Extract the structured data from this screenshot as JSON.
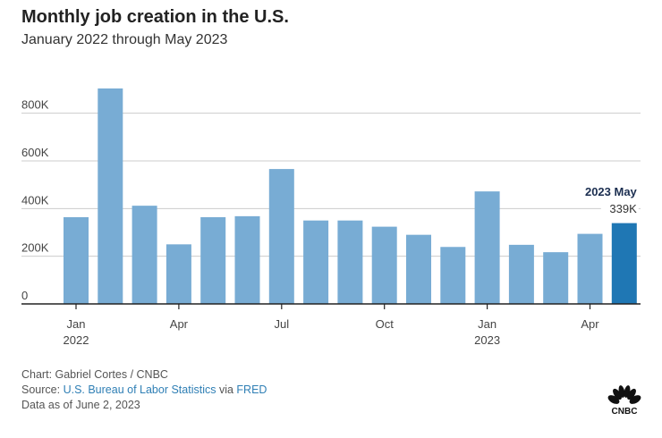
{
  "header": {
    "title": "Monthly job creation in the U.S.",
    "subtitle": "January 2022 through May 2023"
  },
  "chart_data": {
    "type": "bar",
    "title": "Monthly job creation in the U.S.",
    "subtitle": "January 2022 through May 2023",
    "xlabel": "",
    "ylabel": "",
    "categories": [
      "2022-01",
      "2022-02",
      "2022-03",
      "2022-04",
      "2022-05",
      "2022-06",
      "2022-07",
      "2022-08",
      "2022-09",
      "2022-10",
      "2022-11",
      "2022-12",
      "2023-01",
      "2023-02",
      "2023-03",
      "2023-04",
      "2023-05"
    ],
    "values": [
      364,
      904,
      412,
      250,
      364,
      368,
      566,
      350,
      350,
      324,
      290,
      239,
      472,
      248,
      217,
      294,
      339
    ],
    "units": "thousands of jobs",
    "ylim": [
      0,
      1000
    ],
    "yticks": [
      0,
      200,
      400,
      600,
      800
    ],
    "ytick_labels": [
      "0",
      "200K",
      "400K",
      "600K",
      "800K"
    ],
    "xticks": [
      {
        "index": 0,
        "label": "Jan",
        "sublabel": "2022"
      },
      {
        "index": 3,
        "label": "Apr",
        "sublabel": ""
      },
      {
        "index": 6,
        "label": "Jul",
        "sublabel": ""
      },
      {
        "index": 9,
        "label": "Oct",
        "sublabel": ""
      },
      {
        "index": 12,
        "label": "Jan",
        "sublabel": "2023"
      },
      {
        "index": 15,
        "label": "Apr",
        "sublabel": ""
      }
    ],
    "grid": true,
    "highlight": {
      "index": 16,
      "label": "2023 May",
      "value_label": "339K"
    },
    "colors": {
      "bar": "#78acd4",
      "highlight": "#1f77b4",
      "highlight_label": "#1b2e50",
      "grid": "#cccccc",
      "axis": "#222222"
    }
  },
  "footer": {
    "credit": "Chart: Gabriel Cortes / CNBC",
    "source_prefix": "Source: ",
    "source_link": "U.S. Bureau of Labor Statistics",
    "source_via": " via ",
    "source_link2": "FRED",
    "data_as_of": "Data as of June 2, 2023"
  },
  "logo": {
    "name": "cnbc-logo",
    "text": "CNBC"
  }
}
